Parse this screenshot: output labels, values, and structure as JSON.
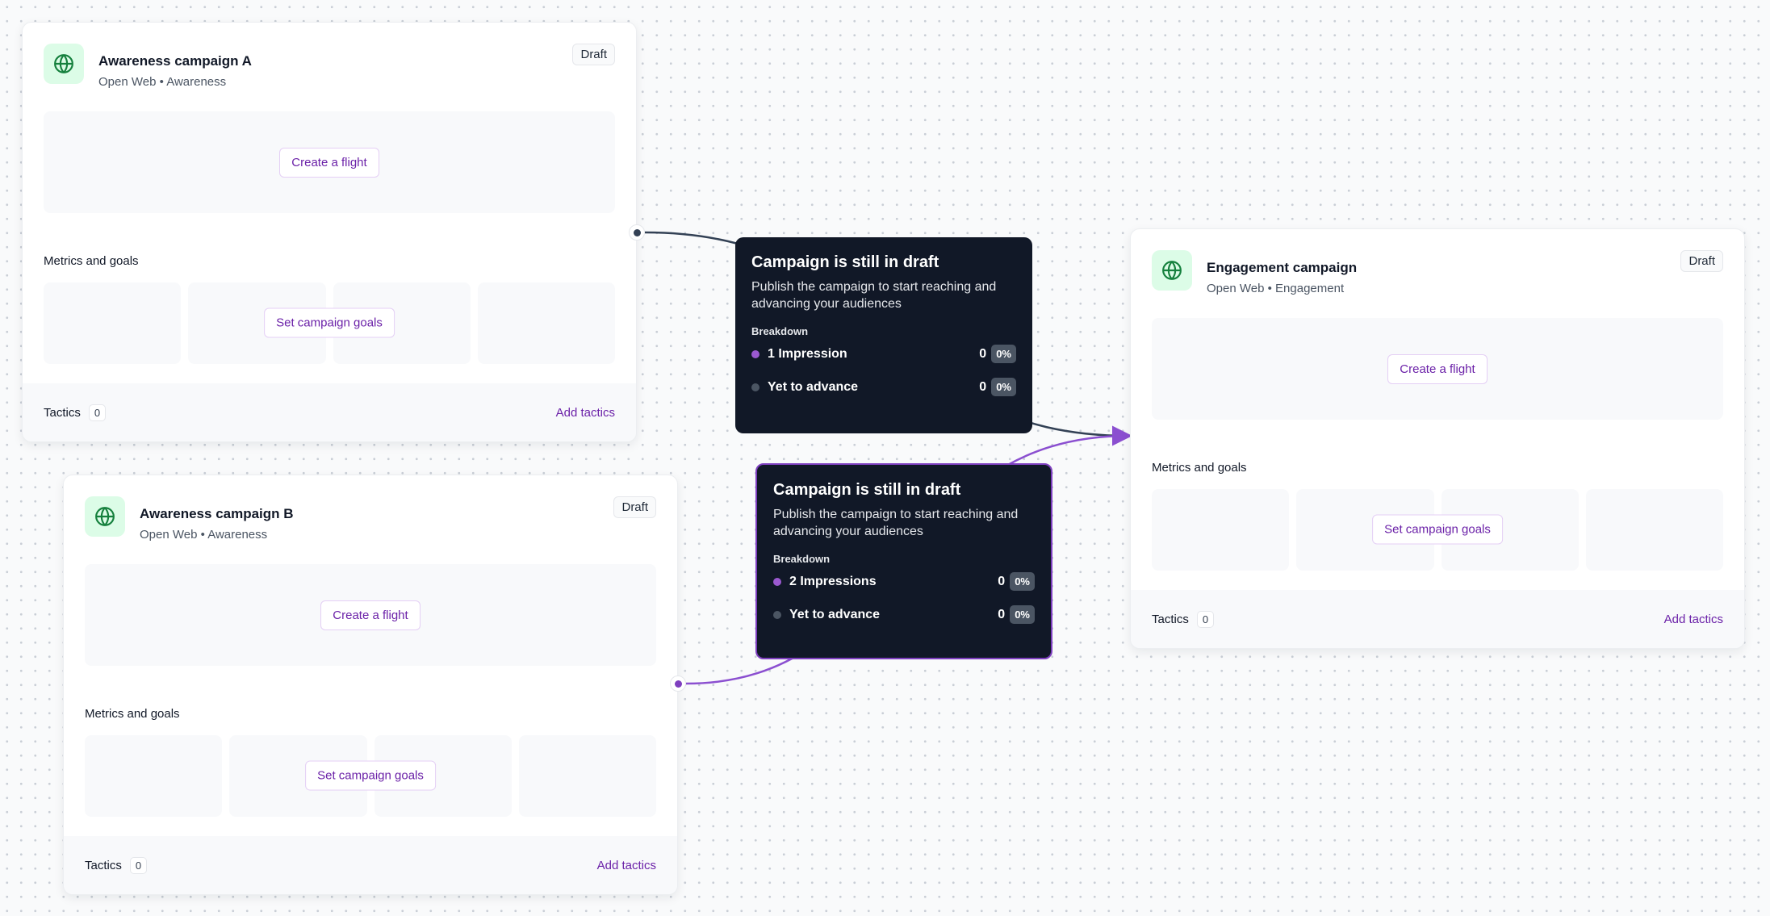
{
  "cards": [
    {
      "title": "Awareness campaign A",
      "channel": "Open Web",
      "objective": "Awareness",
      "status": "Draft",
      "create_flight": "Create a flight",
      "metrics_label": "Metrics and goals",
      "set_goals": "Set campaign goals",
      "tactics_label": "Tactics",
      "tactics_count": "0",
      "add_tactics": "Add tactics"
    },
    {
      "title": "Awareness campaign B",
      "channel": "Open Web",
      "objective": "Awareness",
      "status": "Draft",
      "create_flight": "Create a flight",
      "metrics_label": "Metrics and goals",
      "set_goals": "Set campaign goals",
      "tactics_label": "Tactics",
      "tactics_count": "0",
      "add_tactics": "Add tactics"
    },
    {
      "title": "Engagement campaign",
      "channel": "Open Web",
      "objective": "Engagement",
      "status": "Draft",
      "create_flight": "Create a flight",
      "metrics_label": "Metrics and goals",
      "set_goals": "Set campaign goals",
      "tactics_label": "Tactics",
      "tactics_count": "0",
      "add_tactics": "Add tactics"
    }
  ],
  "separator": "•",
  "tooltips": [
    {
      "title": "Campaign is still in draft",
      "description": "Publish the campaign to start reaching and advancing your audiences",
      "breakdown_label": "Breakdown",
      "rows": [
        {
          "label": "1 Impression",
          "value": "0",
          "percent": "0%"
        },
        {
          "label": "Yet to advance",
          "value": "0",
          "percent": "0%"
        }
      ]
    },
    {
      "title": "Campaign is still in draft",
      "description": "Publish the campaign to start reaching and advancing your audiences",
      "breakdown_label": "Breakdown",
      "rows": [
        {
          "label": "2 Impressions",
          "value": "0",
          "percent": "0%"
        },
        {
          "label": "Yet to advance",
          "value": "0",
          "percent": "0%"
        }
      ]
    }
  ],
  "colors": {
    "accent": "#6b21a8",
    "edge_dark": "#334155",
    "edge_purple": "#8b4fd0",
    "annotation_arrow": "#f04444",
    "icon_bg": "#dcfce7",
    "icon_fg": "#15803d"
  }
}
